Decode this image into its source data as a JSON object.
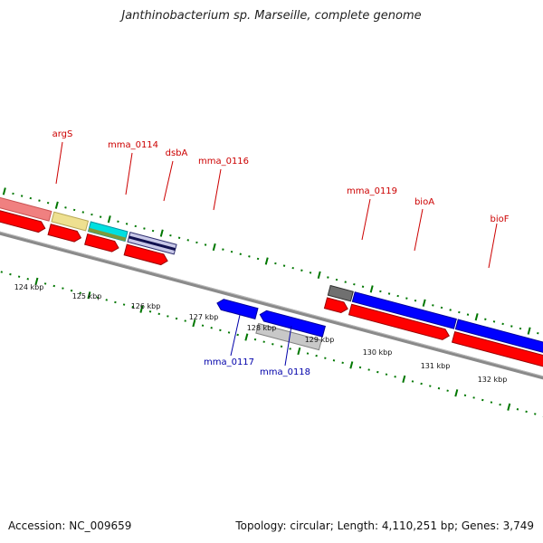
{
  "title": "Janthinobacterium sp. Marseille, complete genome",
  "footer": {
    "accession": "Accession: NC_009659",
    "stats": "Topology: circular; Length: 4,110,251 bp; Genes: 3,749"
  },
  "scale_labels": [
    "124 kbp",
    "125 kbp",
    "126 kbp",
    "127 kbp",
    "128 kbp",
    "129 kbp",
    "130 kbp",
    "131 kbp",
    "132 kbp"
  ],
  "gene_labels": {
    "forward": [
      "argS",
      "mma_0114",
      "dsbA",
      "mma_0116",
      "mma_0119",
      "bioA",
      "bioF"
    ],
    "reverse": [
      "mma_0117",
      "mma_0118"
    ]
  },
  "colors": {
    "forward_label": "#cc0000",
    "reverse_label": "#0000aa",
    "cds_forward": "#ff0000",
    "cds_reverse": "#0000ff",
    "backbone": "#888888",
    "tick": "#007700",
    "argS": "#f08080",
    "mma_0114": "#eee090",
    "dsbA": "#00e0e0",
    "mma_0116": "#5050c0",
    "mma_0118": "#c8c8c8",
    "mma_0119": "#707070",
    "bioA": "#0000ff",
    "bioF": "#0000ff"
  }
}
